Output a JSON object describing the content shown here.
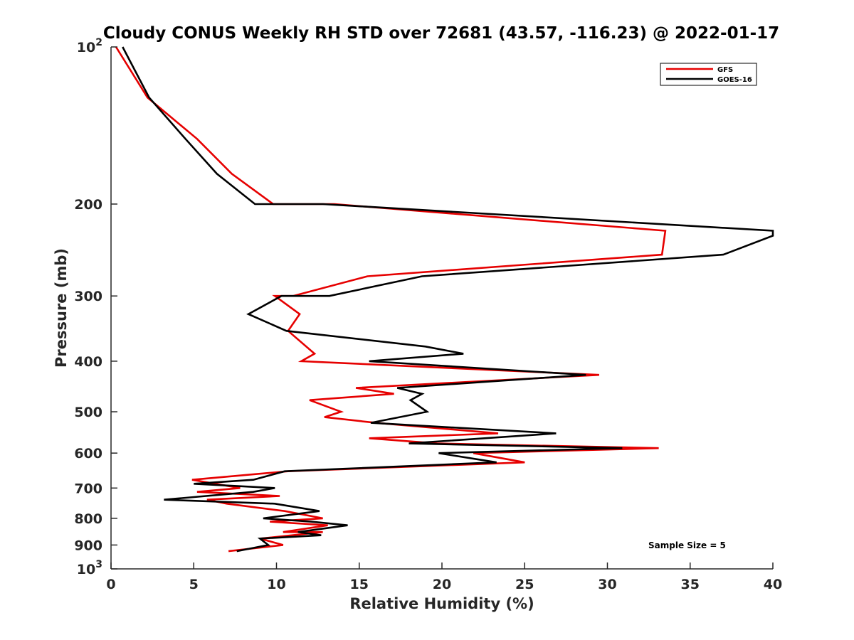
{
  "chart_data": {
    "type": "line",
    "title": "Cloudy CONUS Weekly RH STD over 72681 (43.57, -116.23) @ 2022-01-17",
    "xlabel": "Relative Humidity (%)",
    "ylabel": "Pressure (mb)",
    "xlim": [
      0,
      40
    ],
    "ylim": [
      100,
      1000
    ],
    "y_scale": "log",
    "y_reversed": true,
    "grid": false,
    "x_ticks": [
      0,
      5,
      10,
      15,
      20,
      25,
      30,
      35,
      40
    ],
    "x_tick_labels": [
      "0",
      "5",
      "10",
      "15",
      "20",
      "25",
      "30",
      "35",
      "40"
    ],
    "y_ticks": [
      100,
      200,
      300,
      400,
      500,
      600,
      700,
      800,
      900,
      1000
    ],
    "y_tick_labels": [
      {
        "base": "10",
        "sup": "2"
      },
      {
        "base": "200",
        "sup": ""
      },
      {
        "base": "300",
        "sup": ""
      },
      {
        "base": "400",
        "sup": ""
      },
      {
        "base": "500",
        "sup": ""
      },
      {
        "base": "600",
        "sup": ""
      },
      {
        "base": "700",
        "sup": ""
      },
      {
        "base": "800",
        "sup": ""
      },
      {
        "base": "900",
        "sup": ""
      },
      {
        "base": "10",
        "sup": "3"
      }
    ],
    "legend": {
      "position": "top-right"
    },
    "series": [
      {
        "name": "GFS",
        "color": "#e60000",
        "points": [
          [
            0.3,
            100
          ],
          [
            2.2,
            125
          ],
          [
            5.2,
            150
          ],
          [
            7.3,
            175
          ],
          [
            9.8,
            200
          ],
          [
            13.5,
            200
          ],
          [
            33.5,
            225
          ],
          [
            33.3,
            250
          ],
          [
            15.5,
            275
          ],
          [
            11.0,
            300
          ],
          [
            9.9,
            300
          ],
          [
            11.4,
            325
          ],
          [
            10.7,
            350
          ],
          [
            12.3,
            387
          ],
          [
            11.5,
            400
          ],
          [
            29.5,
            425
          ],
          [
            14.8,
            450
          ],
          [
            17.1,
            462
          ],
          [
            12.0,
            475
          ],
          [
            13.9,
            500
          ],
          [
            12.9,
            512
          ],
          [
            16.0,
            525
          ],
          [
            23.4,
            550
          ],
          [
            15.6,
            562
          ],
          [
            19.7,
            575
          ],
          [
            33.1,
            587
          ],
          [
            21.9,
            600
          ],
          [
            25.0,
            625
          ],
          [
            10.7,
            650
          ],
          [
            4.9,
            675
          ],
          [
            7.8,
            700
          ],
          [
            5.2,
            712
          ],
          [
            10.2,
            725
          ],
          [
            5.8,
            737
          ],
          [
            7.0,
            750
          ],
          [
            10.5,
            775
          ],
          [
            12.8,
            800
          ],
          [
            9.6,
            812
          ],
          [
            13.1,
            825
          ],
          [
            10.4,
            850
          ],
          [
            12.8,
            850
          ],
          [
            9.0,
            875
          ],
          [
            10.4,
            900
          ],
          [
            7.1,
            925
          ]
        ]
      },
      {
        "name": "GOES-16",
        "color": "#000000",
        "points": [
          [
            0.7,
            100
          ],
          [
            2.3,
            125
          ],
          [
            4.5,
            150
          ],
          [
            6.4,
            175
          ],
          [
            8.7,
            200
          ],
          [
            12.8,
            200
          ],
          [
            40.0,
            225
          ],
          [
            40.0,
            230
          ],
          [
            37.0,
            250
          ],
          [
            18.8,
            275
          ],
          [
            13.2,
            300
          ],
          [
            10.3,
            300
          ],
          [
            8.3,
            325
          ],
          [
            10.6,
            350
          ],
          [
            19.0,
            375
          ],
          [
            21.3,
            387
          ],
          [
            15.6,
            400
          ],
          [
            28.7,
            425
          ],
          [
            17.3,
            450
          ],
          [
            18.8,
            462
          ],
          [
            18.1,
            475
          ],
          [
            19.1,
            500
          ],
          [
            15.7,
            525
          ],
          [
            26.9,
            550
          ],
          [
            18.0,
            575
          ],
          [
            30.9,
            587
          ],
          [
            19.8,
            600
          ],
          [
            23.3,
            625
          ],
          [
            10.5,
            650
          ],
          [
            8.6,
            675
          ],
          [
            5.0,
            687
          ],
          [
            9.9,
            700
          ],
          [
            8.6,
            712
          ],
          [
            3.2,
            737
          ],
          [
            9.9,
            750
          ],
          [
            12.6,
            775
          ],
          [
            9.2,
            800
          ],
          [
            12.1,
            812
          ],
          [
            14.3,
            825
          ],
          [
            11.3,
            850
          ],
          [
            12.7,
            862
          ],
          [
            9.0,
            875
          ],
          [
            9.5,
            900
          ],
          [
            7.6,
            925
          ]
        ]
      }
    ],
    "annotation": "Sample Size = 5"
  }
}
